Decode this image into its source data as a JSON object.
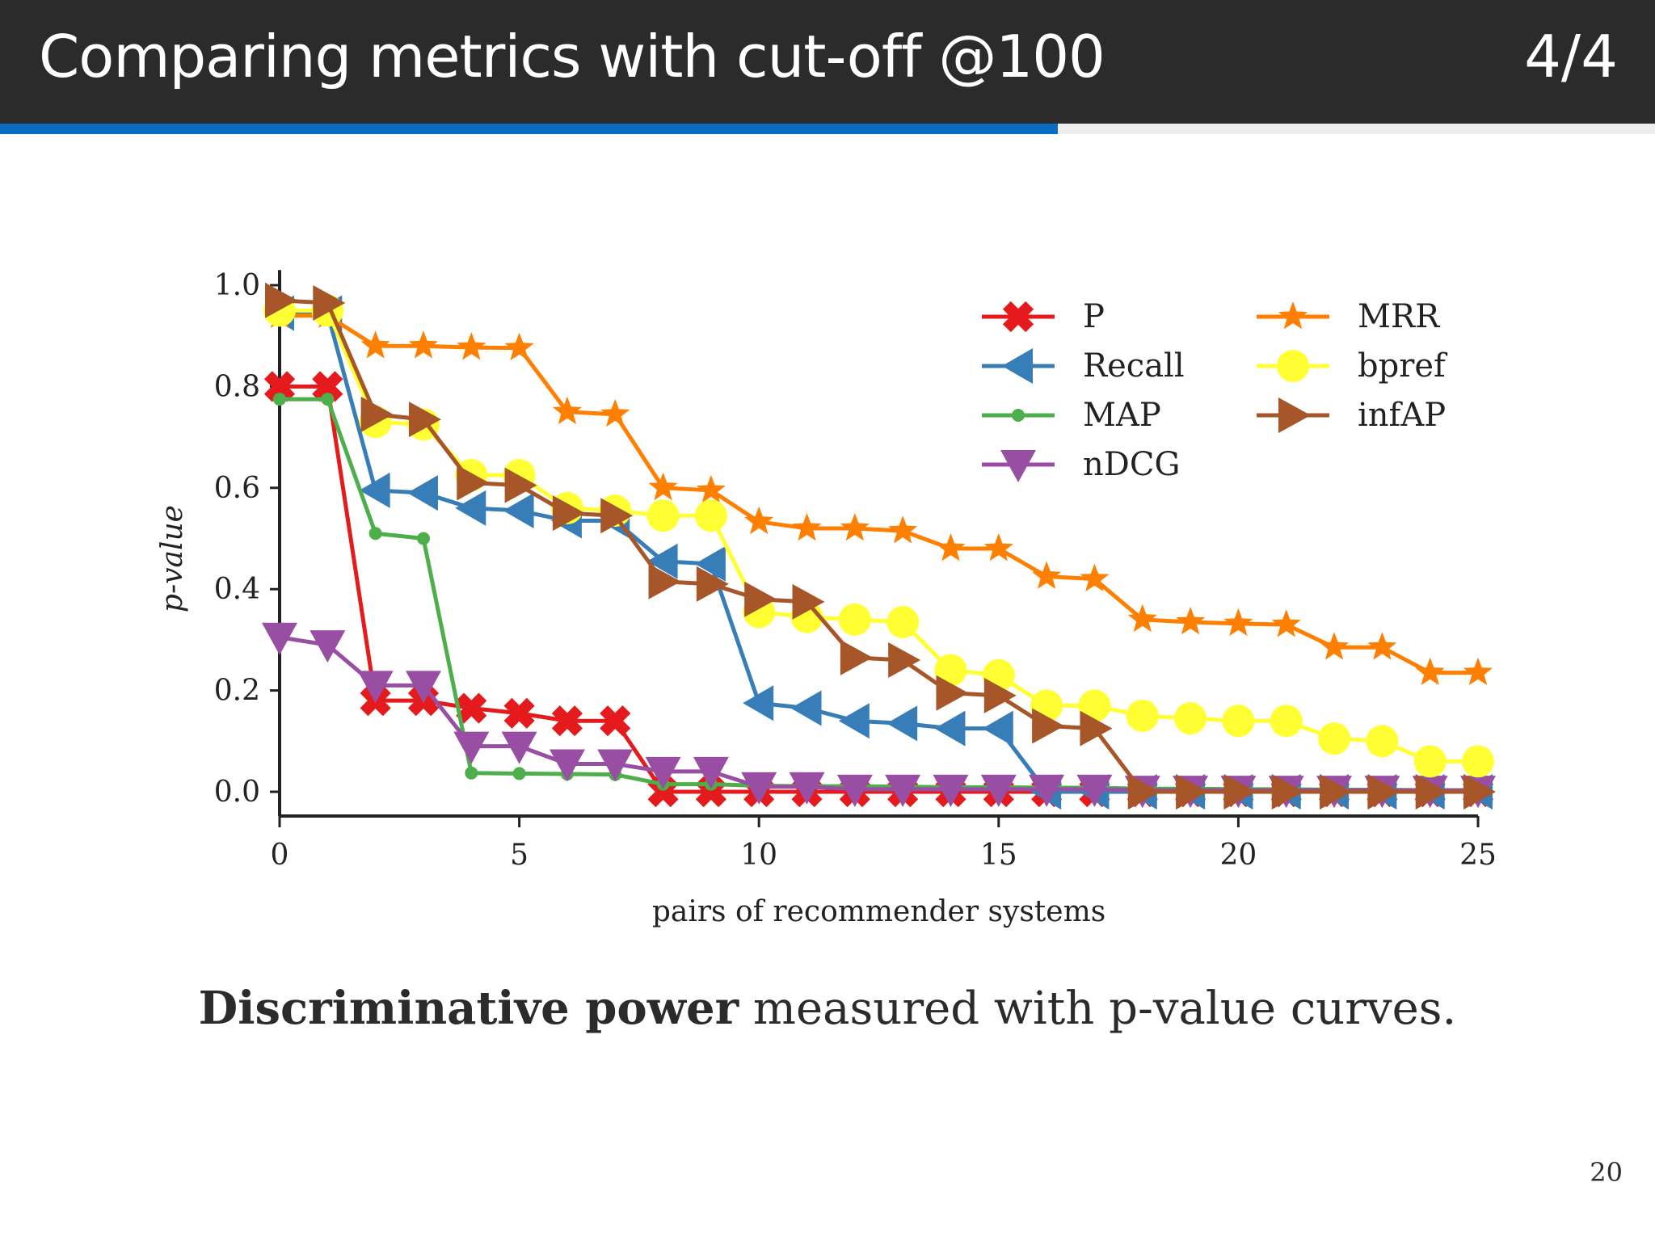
{
  "header": {
    "title": "Comparing metrics with cut-off @100",
    "page_indicator": "4/4",
    "progress": 0.639,
    "accent": "#0a6cc2"
  },
  "caption": {
    "bold": "Discriminative power",
    "rest": " measured with p-value curves."
  },
  "page_number": "20",
  "chart_data": {
    "type": "line",
    "xlabel": "pairs of recommender systems",
    "ylabel": "p-value",
    "xlim": [
      0,
      25
    ],
    "ylim": [
      -0.05,
      1.03
    ],
    "xticks": [
      "0",
      "5",
      "10",
      "15",
      "20",
      "25"
    ],
    "yticks": [
      "0.0",
      "0.2",
      "0.4",
      "0.6",
      "0.8",
      "1.0"
    ],
    "grid": false,
    "legend_placement": "top-right",
    "x": [
      0,
      1,
      2,
      3,
      4,
      5,
      6,
      7,
      8,
      9,
      10,
      11,
      12,
      13,
      14,
      15,
      16,
      17,
      18,
      19,
      20,
      21,
      22,
      23,
      24,
      25
    ],
    "series": [
      {
        "name": "P",
        "color": "#e41a1c",
        "marker": "x",
        "values": [
          0.8,
          0.8,
          0.18,
          0.18,
          0.165,
          0.155,
          0.14,
          0.14,
          0,
          0,
          0,
          0,
          0,
          0,
          0,
          0,
          0,
          0,
          0,
          0,
          0,
          0,
          0,
          0,
          0,
          0
        ]
      },
      {
        "name": "Recall",
        "color": "#377eb8",
        "marker": "triangle-left",
        "values": [
          0.945,
          0.945,
          0.595,
          0.59,
          0.56,
          0.555,
          0.535,
          0.535,
          0.455,
          0.45,
          0.175,
          0.165,
          0.14,
          0.135,
          0.125,
          0.125,
          0,
          0,
          0,
          0,
          0,
          0,
          0,
          0,
          0,
          0
        ]
      },
      {
        "name": "MAP",
        "color": "#4daf4a",
        "marker": "circle-small",
        "values": [
          0.775,
          0.775,
          0.51,
          0.5,
          0.037,
          0.036,
          0.035,
          0.034,
          0.015,
          0.015,
          0.012,
          0.011,
          0.011,
          0.01,
          0.009,
          0.009,
          0.008,
          0.008,
          0.006,
          0.006,
          0.005,
          0.005,
          0.004,
          0.004,
          0.003,
          0.003
        ]
      },
      {
        "name": "nDCG",
        "color": "#984ea3",
        "marker": "triangle-down",
        "values": [
          0.305,
          0.29,
          0.21,
          0.21,
          0.09,
          0.09,
          0.055,
          0.055,
          0.04,
          0.04,
          0.01,
          0.01,
          0.005,
          0.005,
          0.005,
          0.005,
          0.005,
          0.005,
          0.003,
          0.003,
          0.003,
          0.003,
          0.003,
          0.003,
          0.003,
          0.003
        ]
      },
      {
        "name": "MRR",
        "color": "#ff7f00",
        "marker": "star",
        "values": [
          0.94,
          0.94,
          0.88,
          0.88,
          0.877,
          0.876,
          0.75,
          0.745,
          0.6,
          0.595,
          0.533,
          0.52,
          0.52,
          0.515,
          0.48,
          0.48,
          0.425,
          0.42,
          0.34,
          0.335,
          0.332,
          0.33,
          0.285,
          0.285,
          0.235,
          0.235
        ]
      },
      {
        "name": "bpref",
        "color": "#ffff33",
        "marker": "circle",
        "values": [
          0.95,
          0.95,
          0.73,
          0.725,
          0.625,
          0.625,
          0.56,
          0.555,
          0.545,
          0.545,
          0.355,
          0.345,
          0.34,
          0.335,
          0.24,
          0.23,
          0.17,
          0.17,
          0.15,
          0.145,
          0.14,
          0.14,
          0.105,
          0.1,
          0.06,
          0.06
        ]
      },
      {
        "name": "infAP",
        "color": "#a65628",
        "marker": "triangle-right",
        "values": [
          0.97,
          0.965,
          0.745,
          0.735,
          0.61,
          0.605,
          0.55,
          0.545,
          0.415,
          0.41,
          0.38,
          0.375,
          0.265,
          0.26,
          0.195,
          0.19,
          0.13,
          0.125,
          0,
          0,
          0,
          0,
          0,
          0,
          0,
          0
        ]
      }
    ]
  }
}
